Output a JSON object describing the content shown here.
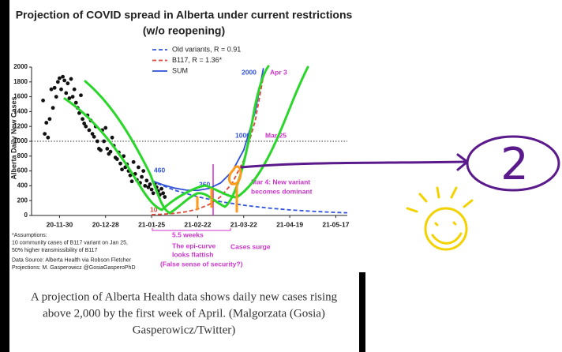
{
  "chart_data": {
    "type": "line",
    "title": "Projection of COVID spread in Alberta under current restrictions",
    "subtitle": "(w/o reopening)",
    "y_label": "Alberta Daily New Cases",
    "xlim": [
      -17,
      175
    ],
    "ylim": [
      0,
      2000
    ],
    "xticks": [
      {
        "value": 0,
        "label": "20-11-30"
      },
      {
        "value": 28,
        "label": "20-12-28"
      },
      {
        "value": 56,
        "label": "21-01-25"
      },
      {
        "value": 84,
        "label": "21-02-22"
      },
      {
        "value": 112,
        "label": "21-03-22"
      },
      {
        "value": 140,
        "label": "21-04-19"
      },
      {
        "value": 168,
        "label": "21-05-17"
      }
    ],
    "yticks": [
      0,
      200,
      400,
      600,
      800,
      1000,
      1200,
      1400,
      1600,
      1800,
      2000
    ],
    "hline": 1000,
    "points": {
      "color": "#111111",
      "x": [
        -10,
        -9,
        -8,
        -7,
        -6,
        -5,
        -4,
        -3,
        -2,
        -1,
        0,
        1,
        2,
        3,
        4,
        5,
        6,
        7,
        8,
        9,
        10,
        11,
        12,
        13,
        14,
        15,
        16,
        17,
        18,
        19,
        20,
        21,
        22,
        23,
        24,
        25,
        26,
        27,
        28,
        29,
        30,
        31,
        32,
        33,
        34,
        35,
        36,
        37,
        38,
        39,
        40,
        41,
        42,
        43,
        44,
        45,
        46,
        47,
        48,
        49,
        50,
        51,
        52,
        53,
        54,
        55,
        56,
        57,
        58,
        59,
        60,
        61,
        62,
        63,
        64
      ],
      "y": [
        1550,
        1100,
        1250,
        1050,
        1300,
        1700,
        1450,
        1720,
        1600,
        1800,
        1850,
        1700,
        1870,
        1820,
        1650,
        1780,
        1580,
        1840,
        1600,
        1700,
        1520,
        1450,
        1380,
        1620,
        1300,
        1240,
        1200,
        1350,
        1150,
        1280,
        1100,
        1060,
        1200,
        1000,
        900,
        880,
        1150,
        1000,
        1180,
        900,
        830,
        860,
        1050,
        940,
        780,
        760,
        850,
        700,
        620,
        800,
        650,
        690,
        600,
        540,
        460,
        720,
        560,
        480,
        650,
        440,
        520,
        600,
        400,
        470,
        380,
        420,
        350,
        300,
        430,
        380,
        330,
        280,
        360,
        300,
        250
      ]
    },
    "series": [
      {
        "name": "Old variants, R = 0.91",
        "color": "#3355dd",
        "dash": true,
        "x": [
          56,
          70,
          84,
          98,
          112,
          126,
          140,
          154,
          168,
          175
        ],
        "values": [
          460,
          340,
          252,
          186,
          138,
          102,
          75,
          56,
          41,
          36
        ]
      },
      {
        "name": "B117, R = 1.36*",
        "color": "#e0463a",
        "dash": true,
        "x": [
          56,
          63,
          70,
          77,
          84,
          91,
          98,
          105,
          112,
          119,
          124
        ],
        "values": [
          10,
          17,
          29,
          50,
          86,
          148,
          253,
          434,
          744,
          1275,
          1880
        ]
      },
      {
        "name": "SUM",
        "color": "#3050d8",
        "dash": false,
        "x": [
          56,
          63,
          70,
          77,
          84,
          91,
          98,
          105,
          112,
          119,
          124
        ],
        "values": [
          470,
          412,
          369,
          342,
          338,
          364,
          439,
          594,
          882,
          1394,
          1986
        ]
      }
    ],
    "annotations": [
      "2000",
      "Apr 3",
      "1000",
      "Mar 25",
      "460",
      "360",
      "10",
      "Mar 4: New variant",
      "becomes dominant",
      "5.5 weeks",
      "The epi-curve",
      "looks flattish",
      "(False sense of security?)",
      "Cases surge"
    ],
    "notes": [
      "*Assumptions:",
      "10 community cases of B117 variant on Jan 25,",
      "50% higher transmissibility of B117",
      "Data Source: Alberta Health via Robson Fletcher",
      "Projections: M. Gasperowicz @GosiaGasperoPhD"
    ]
  },
  "caption": [
    "A projection of Alberta Health data shows daily new cases rising",
    "above 2,000 by the first week of April. (Malgorzata (Gosia)",
    "Gasperowicz/Twitter)"
  ],
  "doodle_label": "2"
}
